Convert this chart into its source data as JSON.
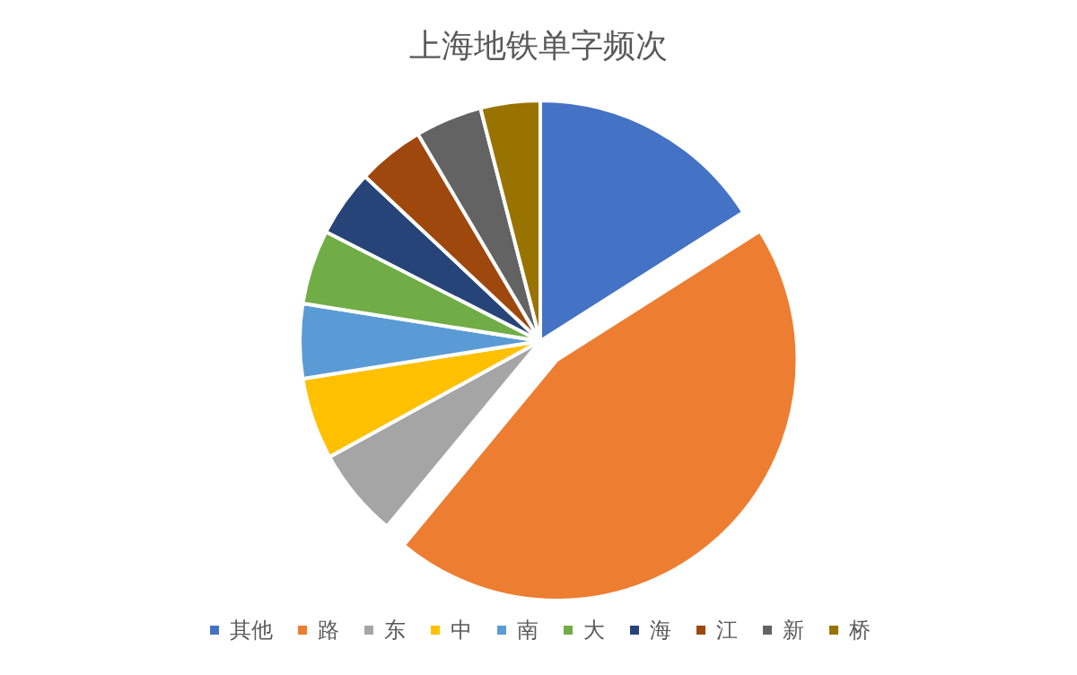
{
  "chart_data": {
    "type": "pie",
    "title": "上海地铁单字频次",
    "categories": [
      "其他",
      "路",
      "东",
      "中",
      "南",
      "大",
      "海",
      "江",
      "新",
      "桥"
    ],
    "values": [
      16,
      45,
      6,
      5.5,
      5,
      5,
      4.5,
      4.5,
      4.5,
      4
    ],
    "colors": [
      "#4472c4",
      "#ed7d31",
      "#a5a5a5",
      "#ffc000",
      "#5b9bd5",
      "#70ad47",
      "#264478",
      "#9e480e",
      "#636363",
      "#997300"
    ],
    "legend": "bottom"
  }
}
